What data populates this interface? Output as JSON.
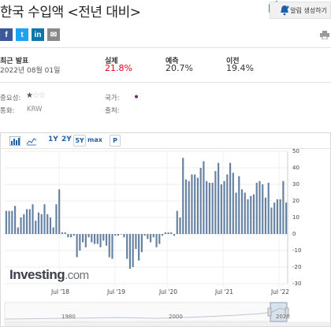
{
  "header": {
    "title": "한국 수입액 <전년 대비>",
    "alert_button": "알림 생성하기"
  },
  "social": [
    {
      "name": "facebook",
      "glyph": "f",
      "color": "#3b5998"
    },
    {
      "name": "twitter",
      "glyph": "t",
      "color": "#1da1f2"
    },
    {
      "name": "linkedin",
      "glyph": "in",
      "color": "#0e76a8"
    },
    {
      "name": "email",
      "glyph": "✉",
      "color": "#8a8a8a"
    }
  ],
  "stats": {
    "latest_label": "최근 발표",
    "latest_date": "2022년 08월 01일",
    "actual_label": "실제",
    "actual_value": "21.8%",
    "forecast_label": "예측",
    "forecast_value": "20.7%",
    "previous_label": "이전",
    "previous_value": "19.4%"
  },
  "meta": {
    "importance_label": "중요성:",
    "currency_label": "통화:",
    "currency_value": "KRW",
    "country_label": "국가:",
    "source_label": "출처:",
    "importance_stars": 1
  },
  "toolbar": {
    "ranges": [
      "1Y",
      "2Y",
      "5Y"
    ],
    "selected_range": "5Y",
    "max_label": "max",
    "p_label": "P"
  },
  "chart_data": {
    "type": "bar",
    "ylim": [
      -30,
      50
    ],
    "yticks": [
      "50",
      "40",
      "30",
      "20",
      "10",
      "0",
      "-10",
      "-20",
      "-30"
    ],
    "xticks": [
      "Jul '18",
      "Jul '19",
      "Jul '20",
      "Jul '21",
      "Jul '22"
    ],
    "navigator_labels": [
      "1980",
      "2000",
      "2020"
    ],
    "values": [
      14,
      14,
      14,
      17,
      4,
      10,
      12,
      15,
      15,
      18,
      8,
      13,
      12,
      18,
      12,
      10,
      4,
      18,
      27,
      1,
      1,
      -2,
      -2,
      -1,
      -14,
      -10,
      -5,
      -8,
      -2,
      -5,
      -6,
      -6,
      -8,
      -4,
      -7,
      -14,
      -15,
      -1,
      -1,
      0,
      -2,
      -15,
      -21,
      -20,
      -9,
      -16,
      -11,
      -1,
      -3,
      -5,
      -2,
      -8,
      -6,
      -1,
      1,
      1,
      1,
      -1,
      14,
      10,
      46,
      33,
      32,
      36,
      36,
      34,
      40,
      44,
      32,
      31,
      31,
      38,
      43,
      30,
      32,
      36,
      43,
      37,
      25,
      35,
      27,
      25,
      21,
      23,
      24,
      31,
      32,
      30,
      22,
      31,
      16,
      19,
      21,
      21,
      32,
      19
    ]
  },
  "watermark": {
    "brand": "Investing",
    "suffix": ".com"
  },
  "colors": {
    "bar": "#6682a3",
    "actual": "#e3001b",
    "link": "#1f5fa7"
  }
}
